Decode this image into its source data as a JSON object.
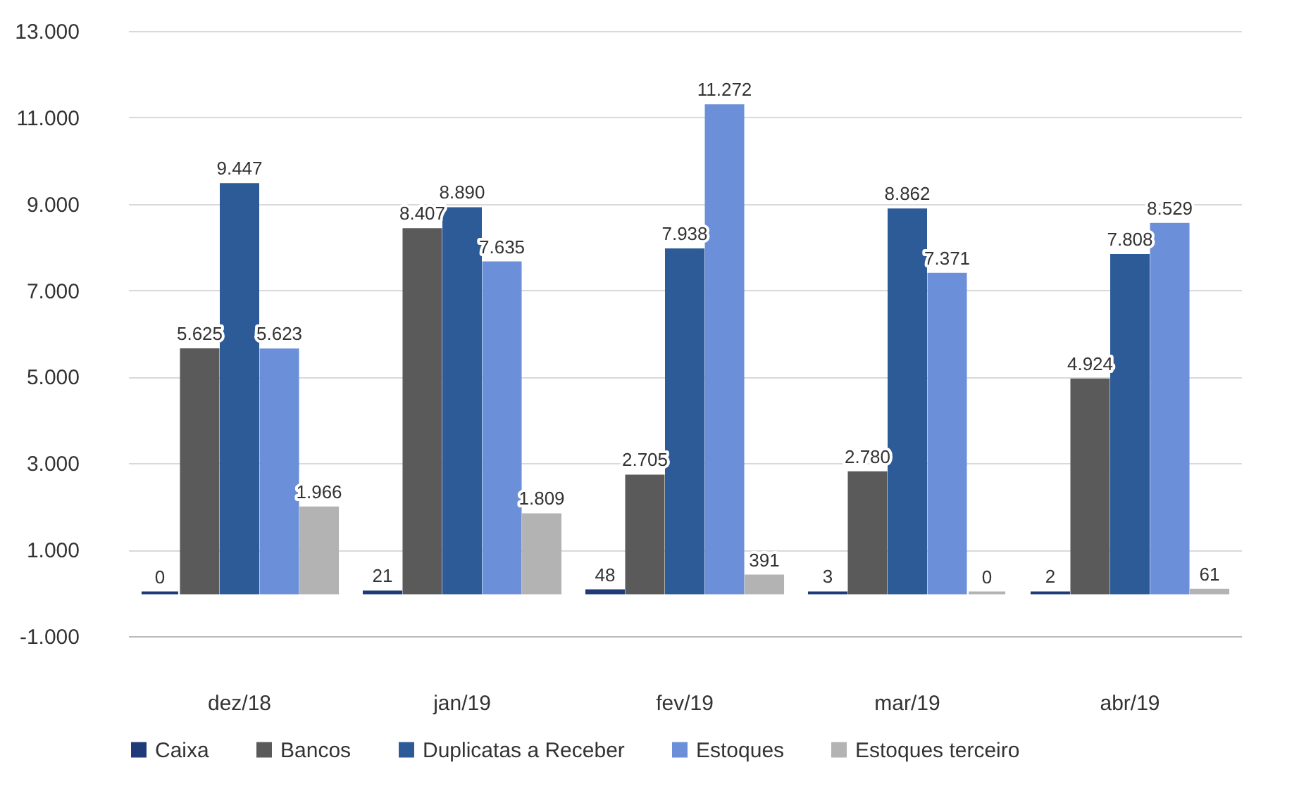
{
  "chart_data": {
    "type": "bar",
    "categories": [
      "dez/18",
      "jan/19",
      "fev/19",
      "mar/19",
      "abr/19"
    ],
    "ylim": [
      -1000,
      13000
    ],
    "yticks": [
      {
        "value": -1000,
        "label": "-1.000"
      },
      {
        "value": 1000,
        "label": "1.000"
      },
      {
        "value": 3000,
        "label": "3.000"
      },
      {
        "value": 5000,
        "label": "5.000"
      },
      {
        "value": 7000,
        "label": "7.000"
      },
      {
        "value": 9000,
        "label": "9.000"
      },
      {
        "value": 11000,
        "label": "11.000"
      },
      {
        "value": 13000,
        "label": "13.000"
      }
    ],
    "grid": "y",
    "legend": "bottom",
    "series": [
      {
        "name": "Caixa",
        "color": "#1f3a78",
        "values": [
          0,
          21,
          48,
          3,
          2
        ],
        "value_labels": [
          "0",
          "21",
          "48",
          "3",
          "2"
        ]
      },
      {
        "name": "Bancos",
        "color": "#5a5a5a",
        "values": [
          5625,
          8407,
          2705,
          2780,
          4924
        ],
        "value_labels": [
          "5.625",
          "8.407",
          "2.705",
          "2.780",
          "4.924"
        ]
      },
      {
        "name": "Duplicatas a Receber",
        "color": "#2d5b98",
        "values": [
          9447,
          8890,
          7938,
          8862,
          7808
        ],
        "value_labels": [
          "9.447",
          "8.890",
          "7.938",
          "8.862",
          "7.808"
        ]
      },
      {
        "name": "Estoques",
        "color": "#6b8fd8",
        "values": [
          5623,
          7635,
          11272,
          7371,
          8529
        ],
        "value_labels": [
          "5.623",
          "7.635",
          "11.272",
          "7.371",
          "8.529"
        ]
      },
      {
        "name": "Estoques terceiro",
        "color": "#b3b3b3",
        "values": [
          1966,
          1809,
          391,
          0,
          61
        ],
        "value_labels": [
          "1.966",
          "1.809",
          "391",
          "0",
          "61"
        ]
      }
    ]
  }
}
